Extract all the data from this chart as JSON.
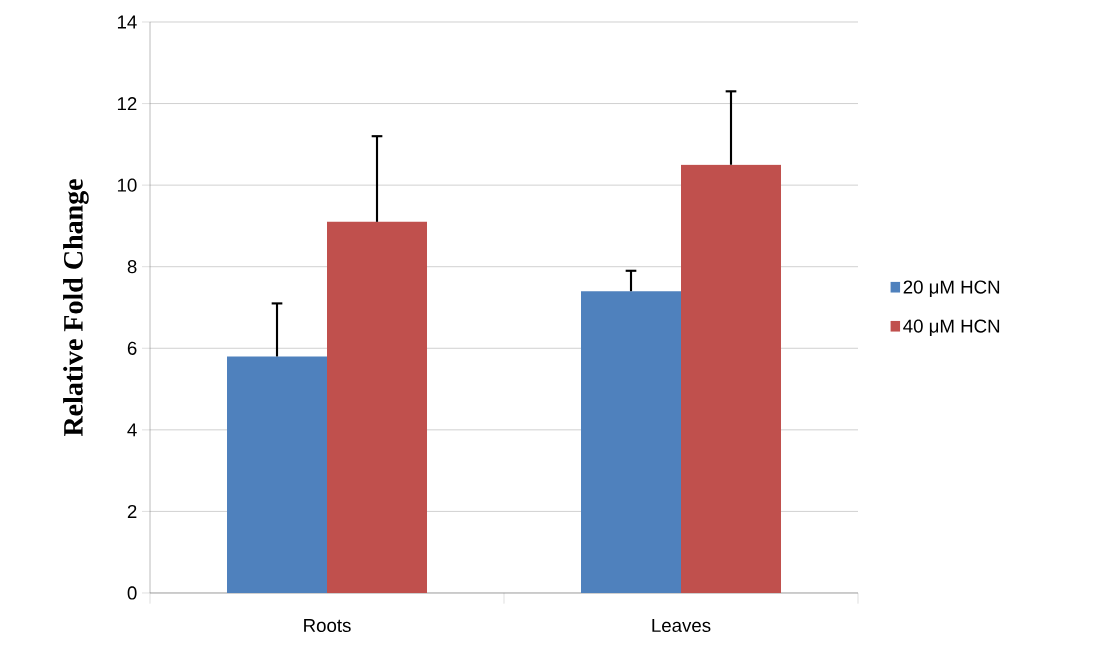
{
  "chart_data": {
    "type": "bar",
    "ylabel": "Relative Fold Change",
    "categories": [
      "Roots",
      "Leaves"
    ],
    "series": [
      {
        "name": "20 μM HCN",
        "color": "#4f81bd",
        "values": [
          5.8,
          7.4
        ],
        "errors": [
          [
            5.8,
            7.1
          ],
          [
            7.4,
            7.9
          ]
        ]
      },
      {
        "name": "40 μM HCN",
        "color": "#c0504d",
        "values": [
          9.1,
          10.5
        ],
        "errors": [
          [
            9.1,
            11.2
          ],
          [
            10.5,
            12.3
          ]
        ]
      }
    ],
    "ylim": [
      0,
      14
    ],
    "yticks": [
      0,
      2,
      4,
      6,
      8,
      10,
      12,
      14
    ],
    "grid": "y",
    "legend": "right"
  }
}
